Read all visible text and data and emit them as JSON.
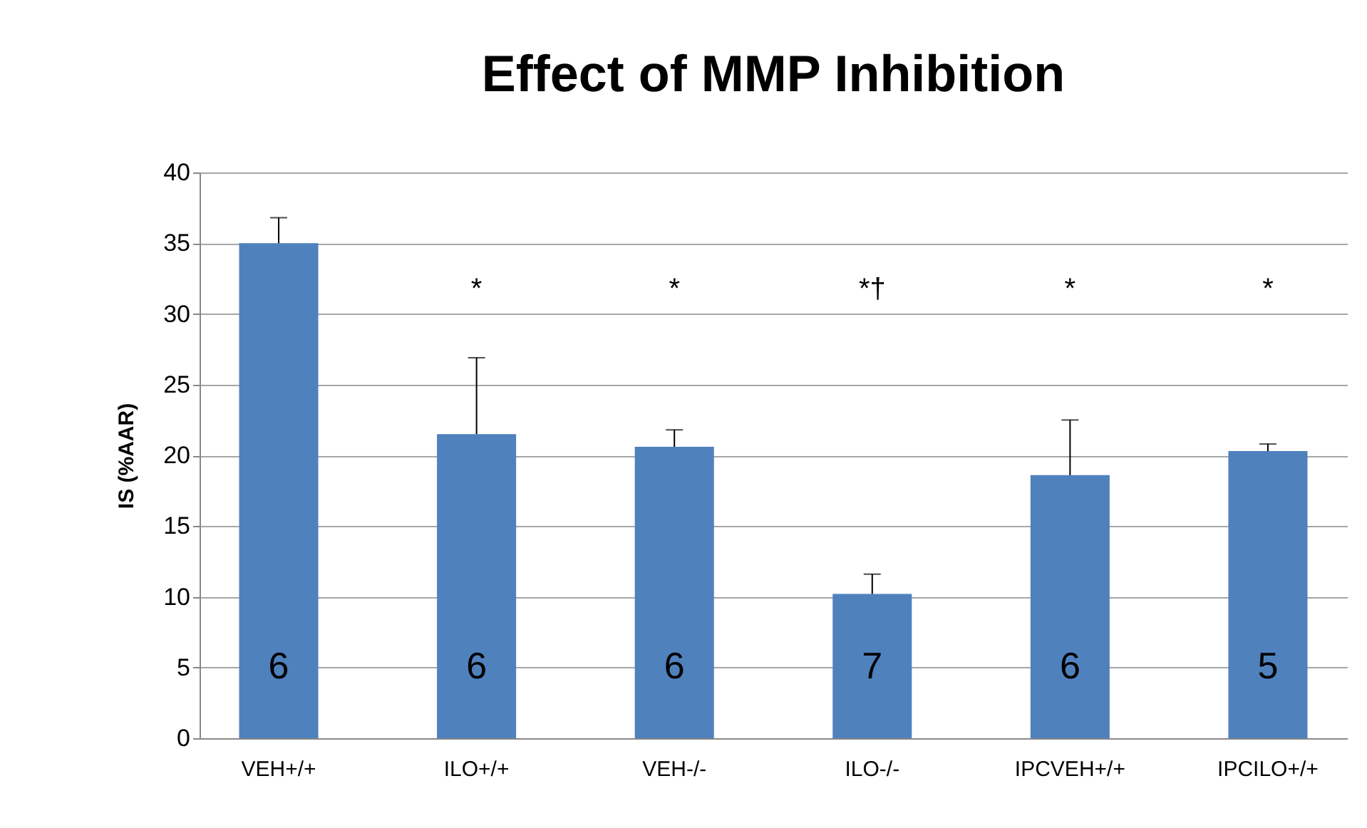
{
  "chart_data": {
    "type": "bar",
    "title": "Effect of MMP Inhibition",
    "ylabel": "IS (%AAR)",
    "categories": [
      "VEH+/+",
      "ILO+/+",
      "VEH-/-",
      "ILO-/-",
      "IPCVEH+/+",
      "IPCILO+/+"
    ],
    "values": [
      35.0,
      21.5,
      20.6,
      10.2,
      18.6,
      20.3
    ],
    "errors": [
      [
        35.0,
        36.8
      ],
      [
        21.5,
        26.9
      ],
      [
        20.6,
        21.8
      ],
      [
        10.2,
        11.6
      ],
      [
        18.6,
        22.5
      ],
      [
        20.3,
        20.8
      ]
    ],
    "color": "#4f81bd",
    "ylim": [
      0,
      40
    ],
    "yticks": [
      0,
      5,
      10,
      15,
      20,
      25,
      30,
      35,
      40
    ],
    "grid": "y",
    "annotations": [
      "*",
      "*",
      "*†",
      "*",
      "*",
      "6",
      "6",
      "6",
      "7",
      "6",
      "5"
    ]
  }
}
